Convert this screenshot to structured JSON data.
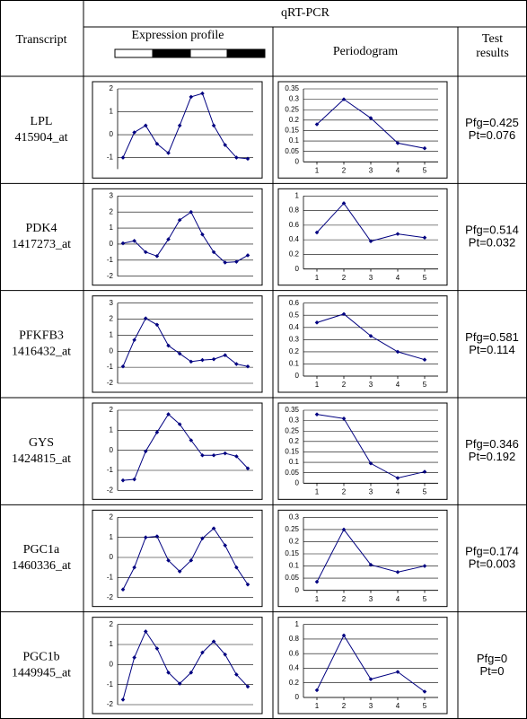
{
  "header": {
    "group": "qRT-PCR",
    "transcript": "Transcript",
    "expression": "Expression profile",
    "periodogram": "Periodogram",
    "test": "Test results"
  },
  "rows": [
    {
      "name": "LPL",
      "probe": "415904_at",
      "expression": {
        "type": "line",
        "ylim": [
          -1.5,
          2
        ],
        "yticks": [
          -1,
          0,
          1,
          2
        ],
        "values": [
          -1,
          0.1,
          0.4,
          -0.4,
          -0.8,
          0.4,
          1.65,
          1.8,
          0.4,
          -0.45,
          -1,
          -1.05
        ]
      },
      "periodogram": {
        "type": "line",
        "x": [
          1,
          2,
          3,
          4,
          5
        ],
        "xlim": [
          0.5,
          5.5
        ],
        "xticks": [
          1,
          2,
          3,
          4,
          5
        ],
        "ylim": [
          0,
          0.35
        ],
        "yticks": [
          0,
          0.05,
          0.1,
          0.15,
          0.2,
          0.25,
          0.3,
          0.35
        ],
        "values": [
          0.18,
          0.3,
          0.21,
          0.09,
          0.065
        ]
      },
      "test": [
        "Pfg=0.425",
        "Pt=0.076"
      ]
    },
    {
      "name": "PDK4",
      "probe": "1417273_at",
      "expression": {
        "type": "line",
        "ylim": [
          -2,
          3
        ],
        "yticks": [
          -2,
          -1,
          0,
          1,
          2,
          3
        ],
        "values": [
          0.05,
          0.2,
          -0.5,
          -0.75,
          0.3,
          1.5,
          2,
          0.6,
          -0.5,
          -1.15,
          -1.1,
          -0.7
        ]
      },
      "periodogram": {
        "type": "line",
        "x": [
          1,
          2,
          3,
          4,
          5
        ],
        "xlim": [
          0.5,
          5.5
        ],
        "xticks": [
          1,
          2,
          3,
          4,
          5
        ],
        "ylim": [
          0,
          1
        ],
        "yticks": [
          0,
          0.2,
          0.4,
          0.6,
          0.8,
          1
        ],
        "values": [
          0.5,
          0.9,
          0.38,
          0.48,
          0.43
        ]
      },
      "test": [
        "Pfg=0.514",
        "Pt=0.032"
      ]
    },
    {
      "name": "PFKFB3",
      "probe": "1416432_at",
      "expression": {
        "type": "line",
        "ylim": [
          -2,
          3
        ],
        "yticks": [
          -2,
          -1,
          0,
          1,
          2,
          3
        ],
        "values": [
          -0.95,
          0.7,
          2.05,
          1.65,
          0.35,
          -0.15,
          -0.65,
          -0.55,
          -0.5,
          -0.25,
          -0.8,
          -0.95
        ]
      },
      "periodogram": {
        "type": "line",
        "x": [
          1,
          2,
          3,
          4,
          5
        ],
        "xlim": [
          0.5,
          5.5
        ],
        "xticks": [
          1,
          2,
          3,
          4,
          5
        ],
        "ylim": [
          0,
          0.6
        ],
        "yticks": [
          0,
          0.1,
          0.2,
          0.3,
          0.4,
          0.5,
          0.6
        ],
        "values": [
          0.44,
          0.51,
          0.33,
          0.2,
          0.135
        ]
      },
      "test": [
        "Pfg=0.581",
        "Pt=0.114"
      ]
    },
    {
      "name": "GYS",
      "probe": "1424815_at",
      "expression": {
        "type": "line",
        "ylim": [
          -2,
          2
        ],
        "yticks": [
          -2,
          -1,
          0,
          1,
          2
        ],
        "values": [
          -1.5,
          -1.45,
          -0.05,
          0.9,
          1.8,
          1.3,
          0.5,
          -0.25,
          -0.25,
          -0.15,
          -0.3,
          -0.9
        ]
      },
      "periodogram": {
        "type": "line",
        "x": [
          1,
          2,
          3,
          4,
          5
        ],
        "xlim": [
          0.5,
          5.5
        ],
        "xticks": [
          1,
          2,
          3,
          4,
          5
        ],
        "ylim": [
          0,
          0.35
        ],
        "yticks": [
          0,
          0.05,
          0.1,
          0.15,
          0.2,
          0.25,
          0.3,
          0.35
        ],
        "values": [
          0.33,
          0.31,
          0.095,
          0.025,
          0.055
        ]
      },
      "test": [
        "Pfg=0.346",
        "Pt=0.192"
      ]
    },
    {
      "name": "PGC1a",
      "probe": "1460336_at",
      "expression": {
        "type": "line",
        "ylim": [
          -2,
          2
        ],
        "yticks": [
          -2,
          -1,
          0,
          1,
          2
        ],
        "values": [
          -1.6,
          -0.5,
          1,
          1.05,
          -0.15,
          -0.7,
          -0.15,
          0.95,
          1.45,
          0.6,
          -0.5,
          -1.35
        ]
      },
      "periodogram": {
        "type": "line",
        "x": [
          1,
          2,
          3,
          4,
          5
        ],
        "xlim": [
          0.5,
          5.5
        ],
        "xticks": [
          1,
          2,
          3,
          4,
          5
        ],
        "ylim": [
          0,
          0.3
        ],
        "yticks": [
          0,
          0.05,
          0.1,
          0.15,
          0.2,
          0.25,
          0.3
        ],
        "values": [
          0.035,
          0.25,
          0.105,
          0.075,
          0.1
        ]
      },
      "test": [
        "Pfg=0.174",
        "Pt=0.003"
      ]
    },
    {
      "name": "PGC1b",
      "probe": "1449945_at",
      "expression": {
        "type": "line",
        "ylim": [
          -2,
          2
        ],
        "yticks": [
          -2,
          -1,
          0,
          1,
          2
        ],
        "values": [
          -1.75,
          0.35,
          1.65,
          0.8,
          -0.4,
          -0.95,
          -0.4,
          0.6,
          1.15,
          0.5,
          -0.5,
          -1.1
        ]
      },
      "periodogram": {
        "type": "line",
        "x": [
          1,
          2,
          3,
          4,
          5
        ],
        "xlim": [
          0.5,
          5.5
        ],
        "xticks": [
          1,
          2,
          3,
          4,
          5
        ],
        "ylim": [
          0,
          1
        ],
        "yticks": [
          0,
          0.2,
          0.4,
          0.6,
          0.8,
          1
        ],
        "values": [
          0.1,
          0.85,
          0.25,
          0.35,
          0.08
        ]
      },
      "test": [
        "Pfg=0",
        "Pt=0"
      ]
    }
  ]
}
